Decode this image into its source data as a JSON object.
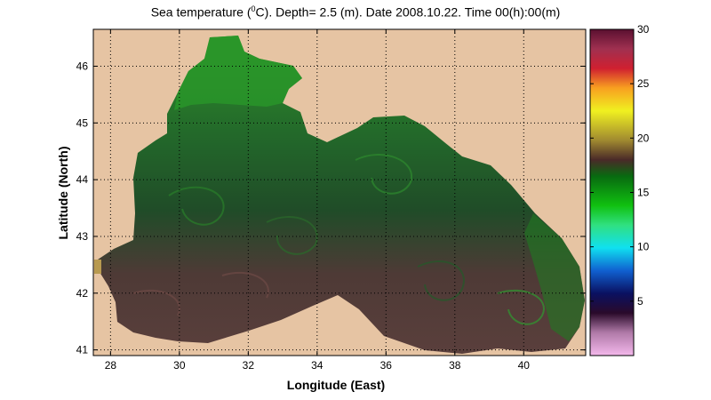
{
  "title": {
    "prefix": "Sea temperature (",
    "sup": "0",
    "suffix": "C). Depth=  2.5 (m). Date 2008.10.22. Time 00(h):00(m)"
  },
  "axes": {
    "xlabel": "Longitude (East)",
    "ylabel": "Latitude (North)",
    "xlim": [
      27.5,
      41.8
    ],
    "ylim": [
      40.9,
      46.65
    ],
    "xticks": [
      "28",
      "30",
      "32",
      "34",
      "36",
      "38",
      "40"
    ],
    "yticks": [
      "41",
      "42",
      "43",
      "44",
      "45",
      "46"
    ],
    "grid": "dotted"
  },
  "colorbar": {
    "range": [
      0,
      30
    ],
    "ticks": [
      "5",
      "10",
      "15",
      "20",
      "25",
      "30"
    ]
  },
  "colors": {
    "land": "#e6c4a3",
    "sea_warm": "#5e3d3d",
    "sea_cool": "#1f5a2a",
    "sea_cold": "#2e9a2a"
  }
}
